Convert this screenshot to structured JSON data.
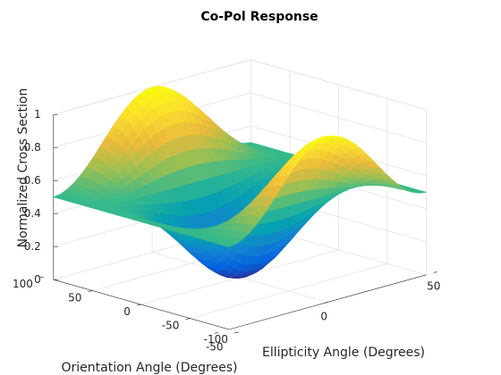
{
  "chart_data": {
    "type": "surface",
    "title": "Co-Pol Response",
    "xlabel": "Ellipticity Angle (Degrees)",
    "ylabel": "Orientation Angle (Degrees)",
    "zlabel": "Normalized Cross Section",
    "xlim": [
      -45,
      45
    ],
    "ylim": [
      -90,
      90
    ],
    "zlim": [
      0,
      1
    ],
    "xticks": [
      -50,
      0,
      50
    ],
    "yticks": [
      -100,
      -50,
      0,
      50,
      100
    ],
    "zticks": [
      0,
      0.2,
      0.4,
      0.6,
      0.8,
      1
    ],
    "xtick_labels": [
      "-50",
      "0",
      "50"
    ],
    "ytick_labels": [
      "-100",
      "-50",
      "0",
      "50",
      "100"
    ],
    "ztick_labels": [
      "0",
      "0.2",
      "0.4",
      "0.6",
      "0.8",
      "1"
    ],
    "grid": true,
    "colormap": "parula",
    "function": "0.5*(1 + cos(2*theta)^2 * cos(2*phi)^2 ... approx; z max 1 at theta=0, phi=+-90; z min ~0 at theta=0, phi=0",
    "corner_values": [
      {
        "x": -45,
        "y": 90,
        "z": 0.5
      },
      {
        "x": -45,
        "y": -90,
        "z": 0.5
      },
      {
        "x": 45,
        "y": 90,
        "z": 0.5
      },
      {
        "x": 45,
        "y": -90,
        "z": 0.5
      }
    ],
    "peak": {
      "x": 0,
      "y": 90,
      "z": 1
    },
    "trough": {
      "x": 0,
      "y": 0,
      "z": 0
    }
  }
}
